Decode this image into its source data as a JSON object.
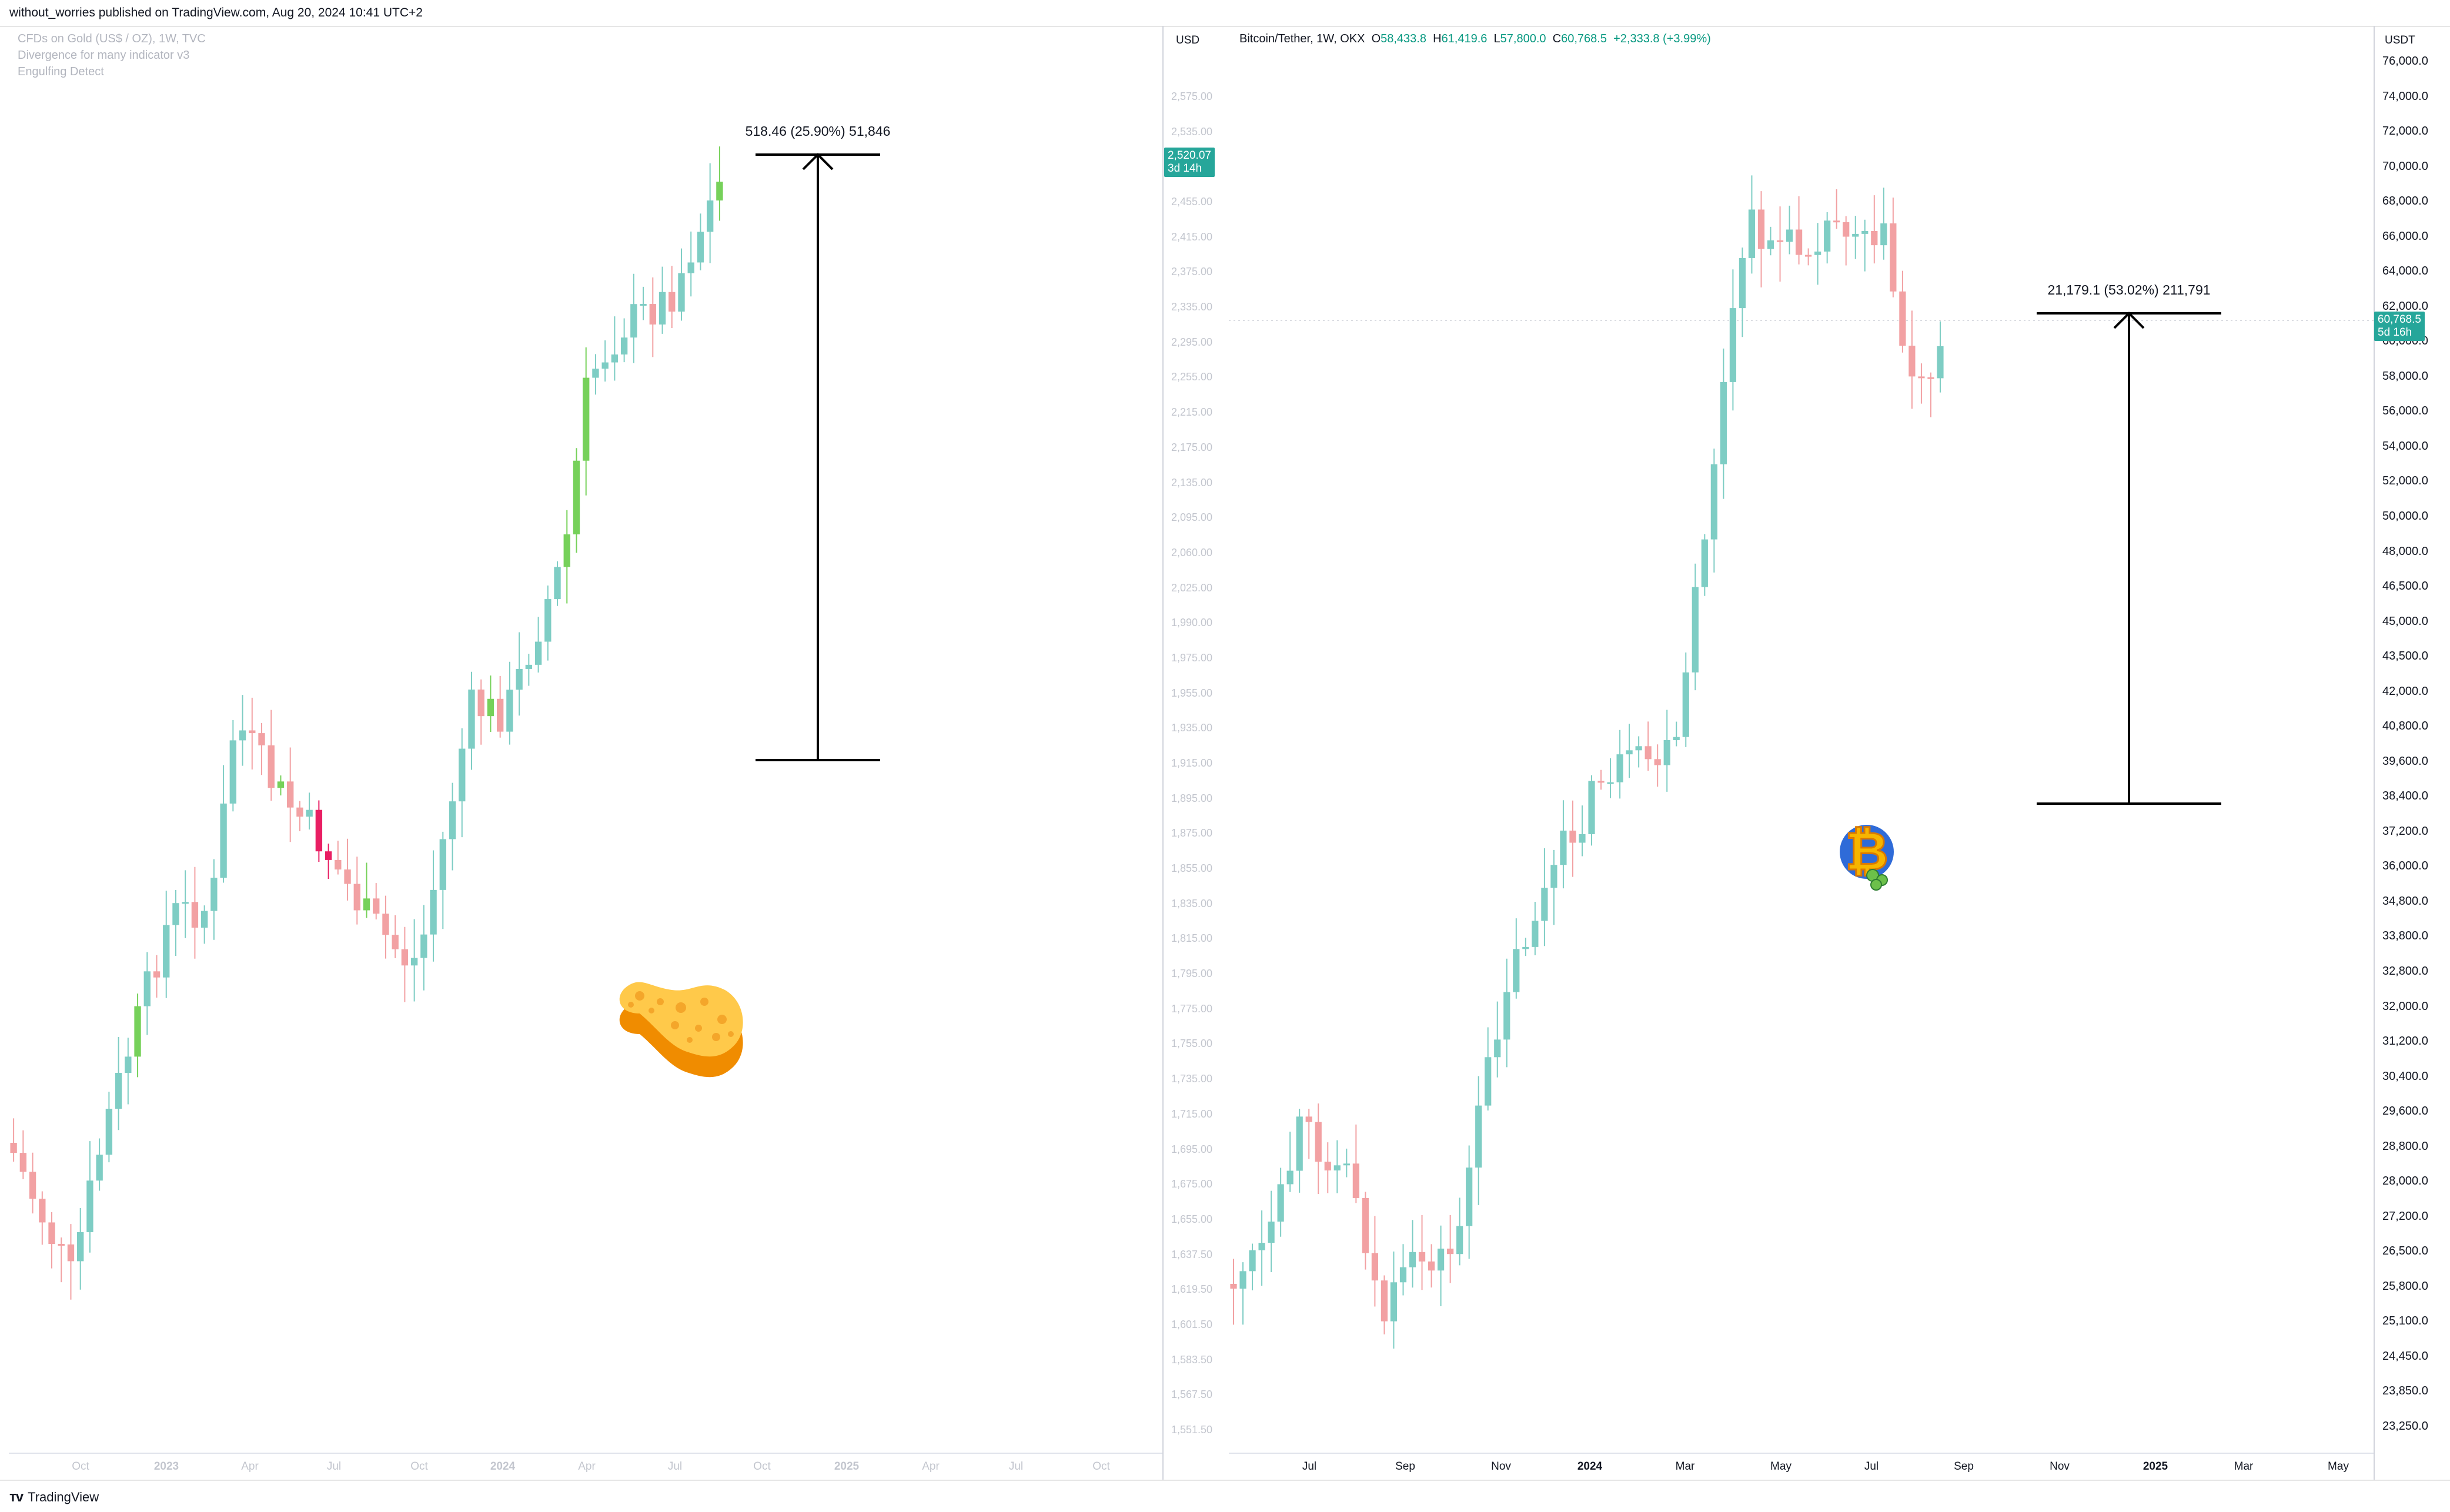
{
  "header": {
    "published_by": "without_worries published on TradingView.com, Aug 20, 2024 10:41 UTC+2"
  },
  "left_chart": {
    "legend": [
      "CFDs on Gold (US$ / OZ), 1W, TVC",
      "Divergence for many indicator v3",
      "Engulfing Detect"
    ],
    "currency": "USD",
    "price_tag": {
      "value": "2,520.07",
      "countdown": "3d 14h"
    },
    "measure_label": "518.46 (25.90%) 51,846",
    "y_ticks": [
      "2,575.00",
      "2,535.00",
      "2,495.00",
      "2,455.00",
      "2,415.00",
      "2,375.00",
      "2,335.00",
      "2,295.00",
      "2,255.00",
      "2,215.00",
      "2,175.00",
      "2,135.00",
      "2,095.00",
      "2,060.00",
      "2,025.00",
      "1,990.00",
      "1,975.00",
      "1,955.00",
      "1,935.00",
      "1,915.00",
      "1,895.00",
      "1,875.00",
      "1,855.00",
      "1,835.00",
      "1,815.00",
      "1,795.00",
      "1,775.00",
      "1,755.00",
      "1,735.00",
      "1,715.00",
      "1,695.00",
      "1,675.00",
      "1,655.00",
      "1,637.50",
      "1,619.50",
      "1,601.50",
      "1,583.50",
      "1,567.50",
      "1,551.50"
    ],
    "x_ticks": [
      "Oct",
      "2023",
      "Apr",
      "Jul",
      "Oct",
      "2024",
      "Apr",
      "Jul",
      "Oct",
      "2025",
      "Apr",
      "Jul",
      "Oct"
    ],
    "sticker": "sponge-icon"
  },
  "right_chart": {
    "symbol": "Bitcoin/Tether, 1W, OKX",
    "ohlc": {
      "o_label": "O",
      "o": "58,433.8",
      "h_label": "H",
      "h": "61,419.6",
      "l_label": "L",
      "l": "57,800.0",
      "c_label": "C",
      "c": "60,768.5",
      "change": "+2,333.8 (+3.99%)"
    },
    "currency": "USDT",
    "price_tag": {
      "value": "60,768.5",
      "countdown": "5d 16h"
    },
    "measure_label": "21,179.1 (53.02%) 211,791",
    "y_ticks": [
      "76,000.0",
      "74,000.0",
      "72,000.0",
      "70,000.0",
      "68,000.0",
      "66,000.0",
      "64,000.0",
      "62,000.0",
      "60,000.0",
      "58,000.0",
      "56,000.0",
      "54,000.0",
      "52,000.0",
      "50,000.0",
      "48,000.0",
      "46,500.0",
      "45,000.0",
      "43,500.0",
      "42,000.0",
      "40,800.0",
      "39,600.0",
      "38,400.0",
      "37,200.0",
      "36,000.0",
      "34,800.0",
      "33,800.0",
      "32,800.0",
      "32,000.0",
      "31,200.0",
      "30,400.0",
      "29,600.0",
      "28,800.0",
      "28,000.0",
      "27,200.0",
      "26,500.0",
      "25,800.0",
      "25,100.0",
      "24,450.0",
      "23,850.0",
      "23,250.0"
    ],
    "x_ticks": [
      "Jul",
      "Sep",
      "Nov",
      "2024",
      "Mar",
      "May",
      "Jul",
      "Sep",
      "Nov",
      "2025",
      "Mar",
      "May"
    ],
    "sticker": "bitcoin-mascot-icon"
  },
  "footer": {
    "brand": "TradingView"
  },
  "colors": {
    "up": "#7ecdc4",
    "down": "#f2a1a3",
    "gold_up": "#76d15a",
    "gold_down": "#e91e63",
    "tag": "#26a69a"
  }
}
